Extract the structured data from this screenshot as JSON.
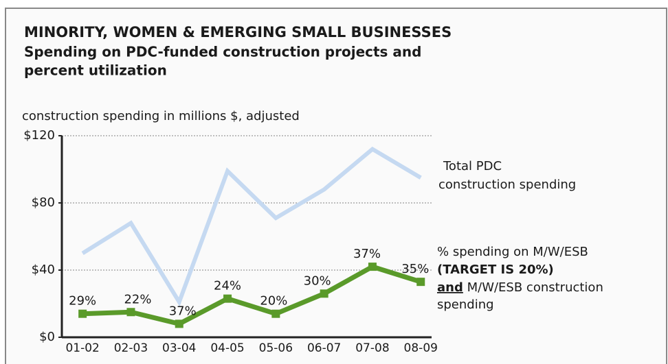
{
  "chart_data": {
    "type": "line",
    "title": "MINORITY, WOMEN & EMERGING SMALL BUSINESSES",
    "subtitle_lines": [
      "Spending on PDC-funded construction projects and",
      "percent utilization"
    ],
    "y_label": "construction spending in millions $, adjusted",
    "categories": [
      "01-02",
      "02-03",
      "03-04",
      "04-05",
      "05-06",
      "06-07",
      "07-08",
      "08-09"
    ],
    "series": [
      {
        "name_lines": [
          "Total PDC",
          "construction spending"
        ],
        "color": "#c5d9f1",
        "values": [
          50,
          68,
          21,
          99,
          71,
          88,
          112,
          95
        ]
      },
      {
        "name_lines": [
          "% spending on M/W/ESB",
          "(TARGET IS 20%)",
          "and",
          "M/W/ESB construction",
          "spending"
        ],
        "color": "#5a9a2a",
        "values": [
          14,
          15,
          8,
          23,
          14,
          26,
          42,
          33
        ],
        "utilization_labels": [
          "29%",
          "22%",
          "37%",
          "24%",
          "20%",
          "30%",
          "37%",
          "35%"
        ]
      }
    ],
    "ylim": [
      0,
      120
    ],
    "yticks": [
      {
        "value": 0,
        "label": "$0"
      },
      {
        "value": 40,
        "label": "$40"
      },
      {
        "value": 80,
        "label": "$80"
      },
      {
        "value": 120,
        "label": "$120"
      }
    ],
    "grid": true
  }
}
